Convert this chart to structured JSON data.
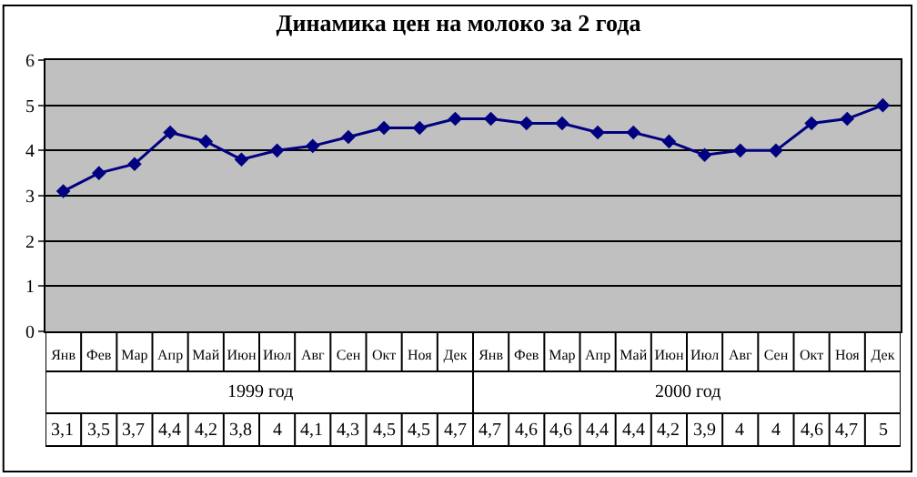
{
  "chart_data": {
    "type": "line",
    "title": "Динамика цен на молоко за 2 года",
    "categories": [
      "Янв",
      "Фев",
      "Мар",
      "Апр",
      "Май",
      "Июн",
      "Июл",
      "Авг",
      "Сен",
      "Окт",
      "Ноя",
      "Дек",
      "Янв",
      "Фев",
      "Мар",
      "Апр",
      "Май",
      "Июн",
      "Июл",
      "Авг",
      "Сен",
      "Окт",
      "Ноя",
      "Дек"
    ],
    "series": [
      {
        "color": "#000080",
        "values": [
          3.1,
          3.5,
          3.7,
          4.4,
          4.2,
          3.8,
          4,
          4.1,
          4.3,
          4.5,
          4.5,
          4.7,
          4.7,
          4.6,
          4.6,
          4.4,
          4.4,
          4.2,
          3.9,
          4,
          4,
          4.6,
          4.7,
          5
        ],
        "value_labels": [
          "3,1",
          "3,5",
          "3,7",
          "4,4",
          "4,2",
          "3,8",
          "4",
          "4,1",
          "4,3",
          "4,5",
          "4,5",
          "4,7",
          "4,7",
          "4,6",
          "4,6",
          "4,4",
          "4,4",
          "4,2",
          "3,9",
          "4",
          "4",
          "4,6",
          "4,7",
          "5"
        ]
      }
    ],
    "annotations": [
      "1999 год",
      "2000 год"
    ],
    "ylim": [
      0,
      6
    ],
    "yticks": [
      0,
      1,
      2,
      3,
      4,
      5,
      6
    ],
    "grid": "y",
    "legend": false,
    "marker": "diamond",
    "line_style": "solid"
  }
}
